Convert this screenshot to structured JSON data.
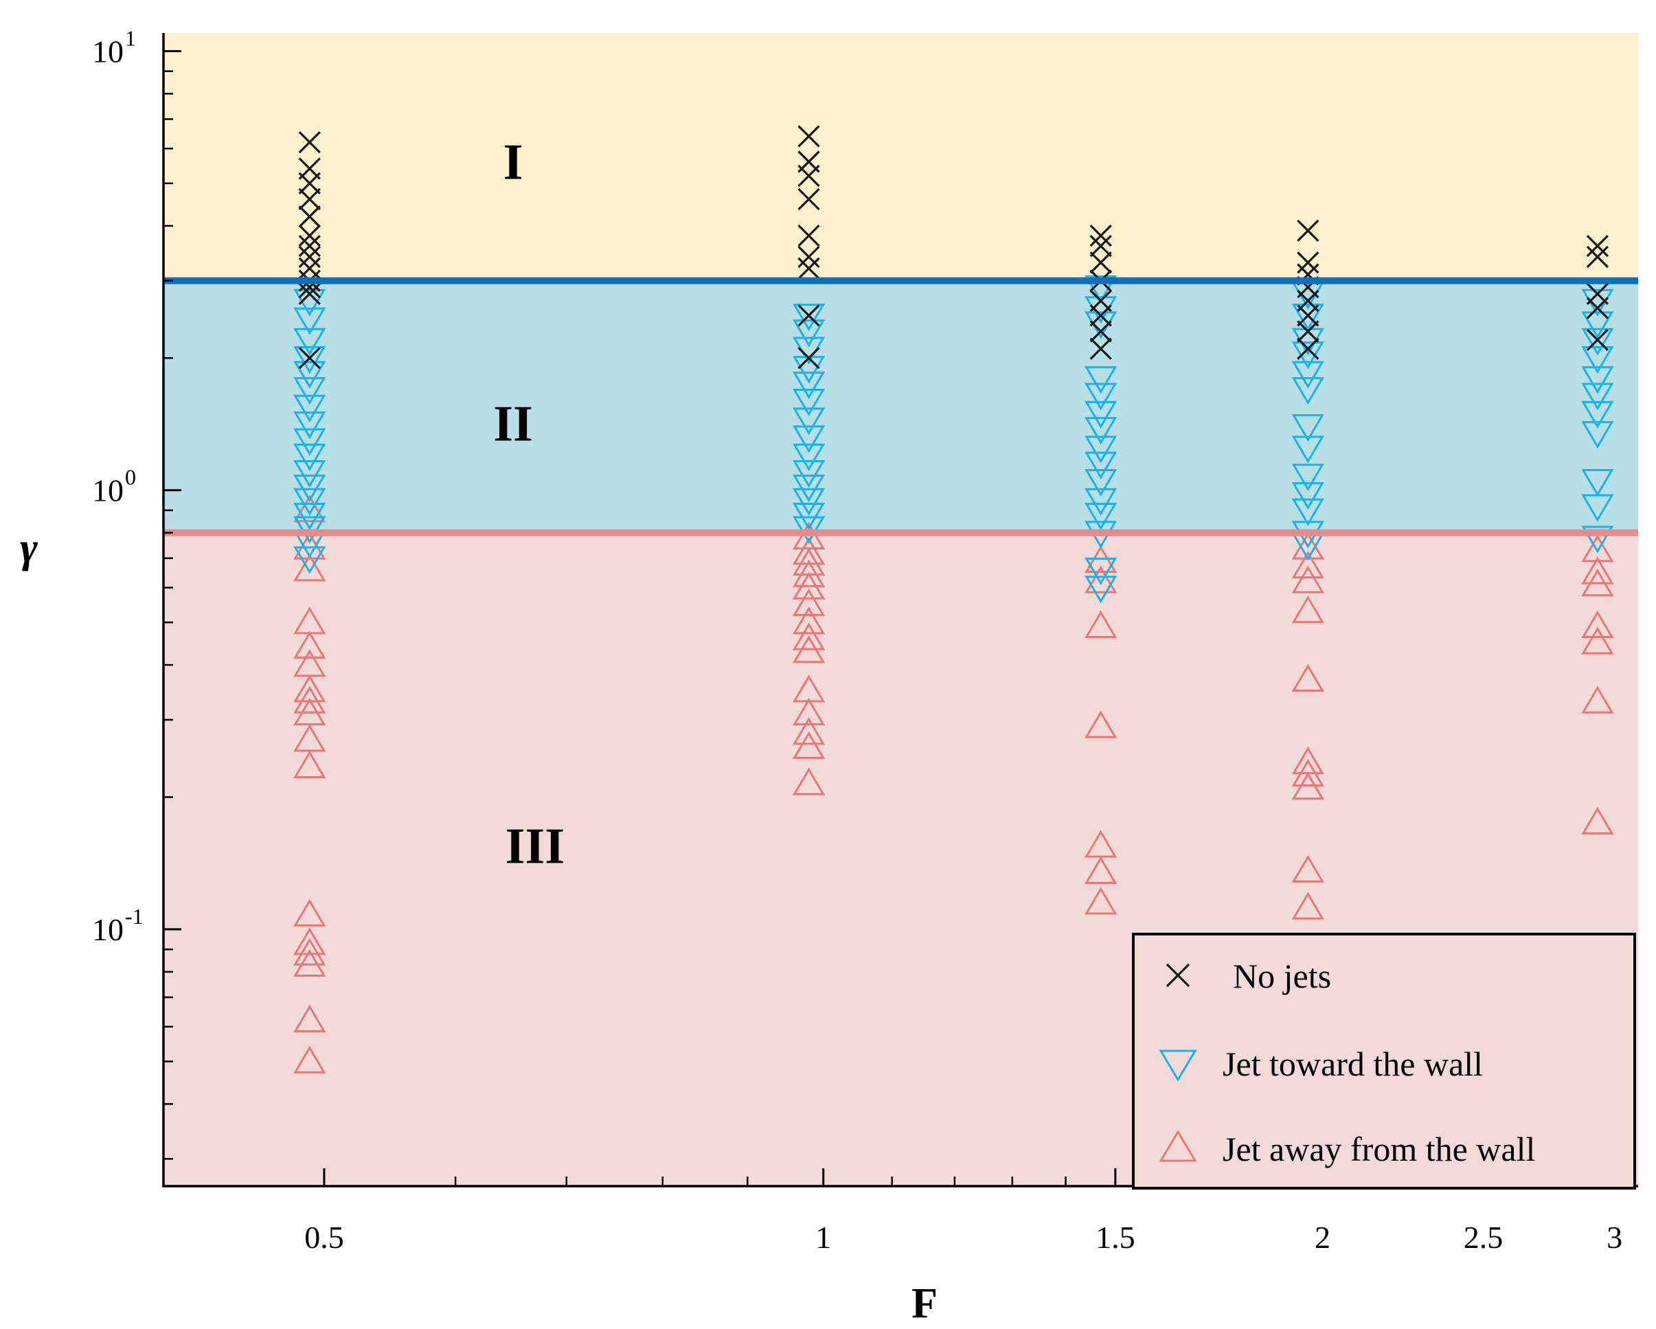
{
  "chart_data": {
    "type": "scatter",
    "xlabel": "F",
    "ylabel": "γ",
    "x_scale": "log",
    "y_scale": "log",
    "xlim": [
      0.4,
      3.1
    ],
    "ylim": [
      0.026,
      11
    ],
    "x_ticks": [
      {
        "value": 0.5,
        "label": "0.5"
      },
      {
        "value": 1,
        "label": "1"
      },
      {
        "value": 1.5,
        "label": "1.5"
      },
      {
        "value": 2,
        "label": "2"
      },
      {
        "value": 2.5,
        "label": "2.5"
      },
      {
        "value": 3,
        "label": "3"
      }
    ],
    "x_minor_ticks": [
      0.6,
      0.7,
      0.8,
      0.9,
      1.1,
      1.2,
      1.3,
      1.4,
      1.6,
      1.7,
      1.8,
      1.9,
      2.1,
      2.2,
      2.3,
      2.4,
      2.6,
      2.7,
      2.8,
      2.9
    ],
    "y_ticks": [
      {
        "value": 0.1,
        "base": "10",
        "exp": "-1"
      },
      {
        "value": 1,
        "base": "10",
        "exp": "0"
      },
      {
        "value": 10,
        "base": "10",
        "exp": "1"
      }
    ],
    "y_minor_ticks": [
      0.03,
      0.04,
      0.05,
      0.06,
      0.07,
      0.08,
      0.09,
      0.2,
      0.3,
      0.4,
      0.5,
      0.6,
      0.7,
      0.8,
      0.9,
      2,
      3,
      4,
      5,
      6,
      7,
      8,
      9
    ],
    "boundaries": [
      {
        "y": 3.0,
        "color": "#0f6fb8"
      },
      {
        "y": 0.8,
        "color": "#e48c8c"
      }
    ],
    "regions": [
      {
        "label": "I",
        "y_from": 3.0,
        "y_to": 11,
        "color": "#fdf0cc",
        "label_x": 0.65,
        "label_y": 5.6
      },
      {
        "label": "II",
        "y_from": 0.8,
        "y_to": 3.0,
        "color": "#b8dfe6",
        "label_x": 0.65,
        "label_y": 1.42
      },
      {
        "label": "III",
        "y_from": 0.026,
        "y_to": 0.8,
        "color": "#f2dad8",
        "label_x": 0.67,
        "label_y": 0.155
      }
    ],
    "series": [
      {
        "name": "No jets",
        "marker": "x",
        "color": "#1a1a1a",
        "points": [
          {
            "x": 0.49,
            "y": 6.2
          },
          {
            "x": 0.49,
            "y": 5.4
          },
          {
            "x": 0.49,
            "y": 5.0
          },
          {
            "x": 0.49,
            "y": 4.6
          },
          {
            "x": 0.49,
            "y": 4.2
          },
          {
            "x": 0.49,
            "y": 3.8
          },
          {
            "x": 0.49,
            "y": 3.6
          },
          {
            "x": 0.49,
            "y": 3.4
          },
          {
            "x": 0.49,
            "y": 3.2
          },
          {
            "x": 0.49,
            "y": 3.0
          },
          {
            "x": 0.49,
            "y": 2.9
          },
          {
            "x": 0.49,
            "y": 2.8
          },
          {
            "x": 0.49,
            "y": 2.0
          },
          {
            "x": 0.98,
            "y": 6.4
          },
          {
            "x": 0.98,
            "y": 5.6
          },
          {
            "x": 0.98,
            "y": 5.2
          },
          {
            "x": 0.98,
            "y": 4.6
          },
          {
            "x": 0.98,
            "y": 3.8
          },
          {
            "x": 0.98,
            "y": 3.4
          },
          {
            "x": 0.98,
            "y": 3.2
          },
          {
            "x": 0.98,
            "y": 2.5
          },
          {
            "x": 0.98,
            "y": 2.0
          },
          {
            "x": 1.47,
            "y": 3.8
          },
          {
            "x": 1.47,
            "y": 3.6
          },
          {
            "x": 1.47,
            "y": 3.3
          },
          {
            "x": 1.47,
            "y": 3.0
          },
          {
            "x": 1.47,
            "y": 2.7
          },
          {
            "x": 1.47,
            "y": 2.5
          },
          {
            "x": 1.47,
            "y": 2.3
          },
          {
            "x": 1.47,
            "y": 2.1
          },
          {
            "x": 1.96,
            "y": 3.9
          },
          {
            "x": 1.96,
            "y": 3.3
          },
          {
            "x": 1.96,
            "y": 3.1
          },
          {
            "x": 1.96,
            "y": 2.9
          },
          {
            "x": 1.96,
            "y": 2.7
          },
          {
            "x": 1.96,
            "y": 2.5
          },
          {
            "x": 1.96,
            "y": 2.3
          },
          {
            "x": 1.96,
            "y": 2.1
          },
          {
            "x": 2.93,
            "y": 3.6
          },
          {
            "x": 2.93,
            "y": 3.4
          },
          {
            "x": 2.93,
            "y": 2.8
          },
          {
            "x": 2.93,
            "y": 2.6
          },
          {
            "x": 2.93,
            "y": 2.2
          }
        ]
      },
      {
        "name": "Jet toward the wall",
        "marker": "triangle-down",
        "color": "#1ab2ec",
        "points": [
          {
            "x": 0.49,
            "y": 2.7
          },
          {
            "x": 0.49,
            "y": 2.45
          },
          {
            "x": 0.49,
            "y": 2.2
          },
          {
            "x": 0.49,
            "y": 2.0
          },
          {
            "x": 0.49,
            "y": 1.85
          },
          {
            "x": 0.49,
            "y": 1.7
          },
          {
            "x": 0.49,
            "y": 1.55
          },
          {
            "x": 0.49,
            "y": 1.42
          },
          {
            "x": 0.49,
            "y": 1.3
          },
          {
            "x": 0.49,
            "y": 1.2
          },
          {
            "x": 0.49,
            "y": 1.1
          },
          {
            "x": 0.49,
            "y": 1.02
          },
          {
            "x": 0.49,
            "y": 0.95
          },
          {
            "x": 0.49,
            "y": 0.88
          },
          {
            "x": 0.49,
            "y": 0.82
          },
          {
            "x": 0.49,
            "y": 0.76
          },
          {
            "x": 0.49,
            "y": 0.7
          },
          {
            "x": 0.98,
            "y": 2.5
          },
          {
            "x": 0.98,
            "y": 2.3
          },
          {
            "x": 0.98,
            "y": 2.1
          },
          {
            "x": 0.98,
            "y": 1.9
          },
          {
            "x": 0.98,
            "y": 1.75
          },
          {
            "x": 0.98,
            "y": 1.6
          },
          {
            "x": 0.98,
            "y": 1.45
          },
          {
            "x": 0.98,
            "y": 1.32
          },
          {
            "x": 0.98,
            "y": 1.2
          },
          {
            "x": 0.98,
            "y": 1.1
          },
          {
            "x": 0.98,
            "y": 1.02
          },
          {
            "x": 0.98,
            "y": 0.95
          },
          {
            "x": 0.98,
            "y": 0.88
          },
          {
            "x": 0.98,
            "y": 0.82
          },
          {
            "x": 1.47,
            "y": 2.9
          },
          {
            "x": 1.47,
            "y": 2.6
          },
          {
            "x": 1.47,
            "y": 2.4
          },
          {
            "x": 1.47,
            "y": 1.8
          },
          {
            "x": 1.47,
            "y": 1.65
          },
          {
            "x": 1.47,
            "y": 1.5
          },
          {
            "x": 1.47,
            "y": 1.38
          },
          {
            "x": 1.47,
            "y": 1.25
          },
          {
            "x": 1.47,
            "y": 1.15
          },
          {
            "x": 1.47,
            "y": 1.05
          },
          {
            "x": 1.47,
            "y": 0.95
          },
          {
            "x": 1.47,
            "y": 0.88
          },
          {
            "x": 1.47,
            "y": 0.8
          },
          {
            "x": 1.47,
            "y": 0.66
          },
          {
            "x": 1.47,
            "y": 0.6
          },
          {
            "x": 1.96,
            "y": 2.8
          },
          {
            "x": 1.96,
            "y": 2.5
          },
          {
            "x": 1.96,
            "y": 2.2
          },
          {
            "x": 1.96,
            "y": 2.05
          },
          {
            "x": 1.96,
            "y": 1.85
          },
          {
            "x": 1.96,
            "y": 1.7
          },
          {
            "x": 1.96,
            "y": 1.4
          },
          {
            "x": 1.96,
            "y": 1.25
          },
          {
            "x": 1.96,
            "y": 1.08
          },
          {
            "x": 1.96,
            "y": 0.98
          },
          {
            "x": 1.96,
            "y": 0.9
          },
          {
            "x": 1.96,
            "y": 0.8
          },
          {
            "x": 1.96,
            "y": 0.75
          },
          {
            "x": 2.93,
            "y": 2.7
          },
          {
            "x": 2.93,
            "y": 2.4
          },
          {
            "x": 2.93,
            "y": 2.2
          },
          {
            "x": 2.93,
            "y": 2.0
          },
          {
            "x": 2.93,
            "y": 1.8
          },
          {
            "x": 2.93,
            "y": 1.65
          },
          {
            "x": 2.93,
            "y": 1.5
          },
          {
            "x": 2.93,
            "y": 1.35
          },
          {
            "x": 2.93,
            "y": 1.05
          },
          {
            "x": 2.93,
            "y": 0.92
          },
          {
            "x": 2.93,
            "y": 0.78
          }
        ]
      },
      {
        "name": "Jet away from the wall",
        "marker": "triangle-up",
        "color": "#e87878",
        "points": [
          {
            "x": 0.49,
            "y": 0.9
          },
          {
            "x": 0.49,
            "y": 0.74
          },
          {
            "x": 0.49,
            "y": 0.66
          },
          {
            "x": 0.49,
            "y": 0.5
          },
          {
            "x": 0.49,
            "y": 0.44
          },
          {
            "x": 0.49,
            "y": 0.4
          },
          {
            "x": 0.49,
            "y": 0.35
          },
          {
            "x": 0.49,
            "y": 0.33
          },
          {
            "x": 0.49,
            "y": 0.31
          },
          {
            "x": 0.49,
            "y": 0.27
          },
          {
            "x": 0.49,
            "y": 0.235
          },
          {
            "x": 0.49,
            "y": 0.108
          },
          {
            "x": 0.49,
            "y": 0.093
          },
          {
            "x": 0.49,
            "y": 0.088
          },
          {
            "x": 0.49,
            "y": 0.083
          },
          {
            "x": 0.49,
            "y": 0.062
          },
          {
            "x": 0.49,
            "y": 0.05
          },
          {
            "x": 0.98,
            "y": 0.78
          },
          {
            "x": 0.98,
            "y": 0.72
          },
          {
            "x": 0.98,
            "y": 0.68
          },
          {
            "x": 0.98,
            "y": 0.64
          },
          {
            "x": 0.98,
            "y": 0.6
          },
          {
            "x": 0.98,
            "y": 0.55
          },
          {
            "x": 0.98,
            "y": 0.5
          },
          {
            "x": 0.98,
            "y": 0.46
          },
          {
            "x": 0.98,
            "y": 0.43
          },
          {
            "x": 0.98,
            "y": 0.35
          },
          {
            "x": 0.98,
            "y": 0.31
          },
          {
            "x": 0.98,
            "y": 0.28
          },
          {
            "x": 0.98,
            "y": 0.26
          },
          {
            "x": 0.98,
            "y": 0.215
          },
          {
            "x": 1.47,
            "y": 0.69
          },
          {
            "x": 1.47,
            "y": 0.62
          },
          {
            "x": 1.47,
            "y": 0.49
          },
          {
            "x": 1.47,
            "y": 0.29
          },
          {
            "x": 1.47,
            "y": 0.155
          },
          {
            "x": 1.47,
            "y": 0.135
          },
          {
            "x": 1.47,
            "y": 0.115
          },
          {
            "x": 1.96,
            "y": 0.74
          },
          {
            "x": 1.96,
            "y": 0.67
          },
          {
            "x": 1.96,
            "y": 0.62
          },
          {
            "x": 1.96,
            "y": 0.53
          },
          {
            "x": 1.96,
            "y": 0.37
          },
          {
            "x": 1.96,
            "y": 0.24
          },
          {
            "x": 1.96,
            "y": 0.225
          },
          {
            "x": 1.96,
            "y": 0.21
          },
          {
            "x": 1.96,
            "y": 0.136
          },
          {
            "x": 1.96,
            "y": 0.112
          },
          {
            "x": 2.93,
            "y": 0.73
          },
          {
            "x": 2.93,
            "y": 0.65
          },
          {
            "x": 2.93,
            "y": 0.61
          },
          {
            "x": 2.93,
            "y": 0.49
          },
          {
            "x": 2.93,
            "y": 0.45
          },
          {
            "x": 2.93,
            "y": 0.33
          },
          {
            "x": 2.93,
            "y": 0.175
          }
        ]
      }
    ],
    "legend": {
      "position": "bottom-right",
      "entries": [
        "No jets",
        "Jet toward the wall",
        "Jet away from the wall"
      ]
    }
  }
}
